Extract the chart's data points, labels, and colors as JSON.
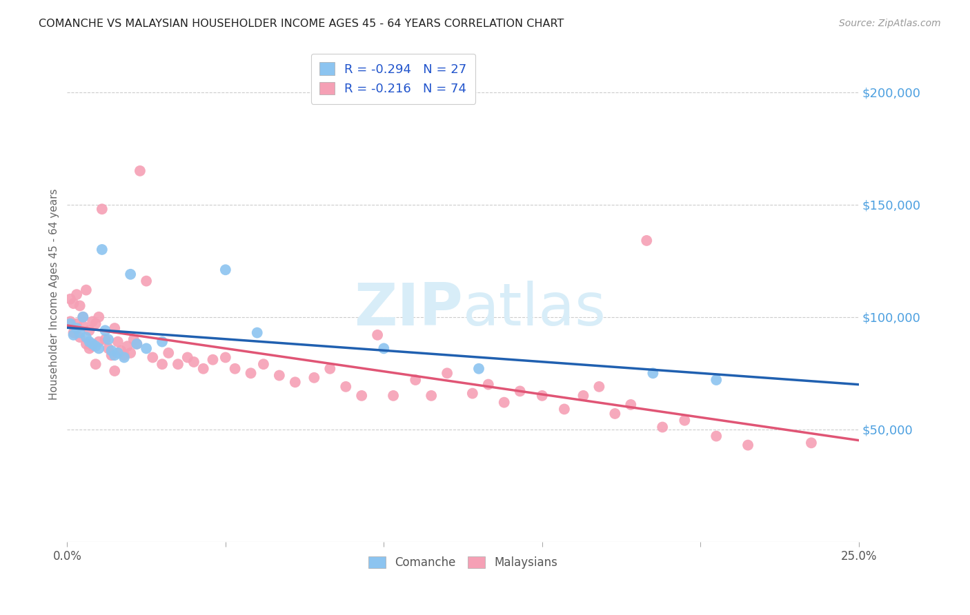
{
  "title": "COMANCHE VS MALAYSIAN HOUSEHOLDER INCOME AGES 45 - 64 YEARS CORRELATION CHART",
  "source": "Source: ZipAtlas.com",
  "ylabel": "Householder Income Ages 45 - 64 years",
  "ylabel_right_values": [
    50000,
    100000,
    150000,
    200000
  ],
  "x_min": 0.0,
  "x_max": 0.25,
  "y_min": 0,
  "y_max": 220000,
  "legend_label_comanche": "R = -0.294   N = 27",
  "legend_label_malaysians": "R = -0.216   N = 74",
  "legend_bottom_comanche": "Comanche",
  "legend_bottom_malaysians": "Malaysians",
  "color_comanche": "#8cc4f0",
  "color_malaysians": "#f5a0b5",
  "color_comanche_line": "#2060b0",
  "color_malaysians_line": "#e05575",
  "color_title": "#222222",
  "color_source": "#999999",
  "color_right_axis_labels": "#4da0e0",
  "color_legend_text": "#2255cc",
  "watermark_color": "#d8edf8",
  "background_color": "#ffffff",
  "grid_color": "#cccccc",
  "comanche_x": [
    0.001,
    0.002,
    0.003,
    0.004,
    0.005,
    0.006,
    0.007,
    0.008,
    0.009,
    0.01,
    0.011,
    0.012,
    0.013,
    0.014,
    0.015,
    0.016,
    0.018,
    0.02,
    0.022,
    0.025,
    0.03,
    0.05,
    0.06,
    0.1,
    0.13,
    0.185,
    0.205
  ],
  "comanche_y": [
    97000,
    92000,
    95000,
    93000,
    100000,
    91000,
    89000,
    88000,
    87000,
    86000,
    130000,
    94000,
    90000,
    85000,
    83000,
    84000,
    82000,
    119000,
    88000,
    86000,
    89000,
    121000,
    93000,
    86000,
    77000,
    75000,
    72000
  ],
  "malaysians_x": [
    0.001,
    0.001,
    0.002,
    0.002,
    0.003,
    0.003,
    0.004,
    0.004,
    0.005,
    0.005,
    0.006,
    0.006,
    0.007,
    0.007,
    0.008,
    0.008,
    0.009,
    0.009,
    0.01,
    0.01,
    0.011,
    0.012,
    0.013,
    0.014,
    0.015,
    0.015,
    0.016,
    0.017,
    0.018,
    0.019,
    0.02,
    0.021,
    0.022,
    0.023,
    0.025,
    0.027,
    0.03,
    0.032,
    0.035,
    0.038,
    0.04,
    0.043,
    0.046,
    0.05,
    0.053,
    0.058,
    0.062,
    0.067,
    0.072,
    0.078,
    0.083,
    0.088,
    0.093,
    0.098,
    0.103,
    0.11,
    0.115,
    0.12,
    0.128,
    0.133,
    0.138,
    0.143,
    0.15,
    0.157,
    0.163,
    0.168,
    0.173,
    0.178,
    0.183,
    0.188,
    0.195,
    0.205,
    0.215,
    0.235
  ],
  "malaysians_y": [
    108000,
    98000,
    106000,
    93000,
    110000,
    97000,
    105000,
    91000,
    100000,
    96000,
    112000,
    88000,
    86000,
    94000,
    98000,
    87000,
    97000,
    79000,
    100000,
    89000,
    148000,
    90000,
    86000,
    83000,
    95000,
    76000,
    89000,
    85000,
    83000,
    87000,
    84000,
    90000,
    88000,
    165000,
    116000,
    82000,
    79000,
    84000,
    79000,
    82000,
    80000,
    77000,
    81000,
    82000,
    77000,
    75000,
    79000,
    74000,
    71000,
    73000,
    77000,
    69000,
    65000,
    92000,
    65000,
    72000,
    65000,
    75000,
    66000,
    70000,
    62000,
    67000,
    65000,
    59000,
    65000,
    69000,
    57000,
    61000,
    134000,
    51000,
    54000,
    47000,
    43000,
    44000
  ]
}
